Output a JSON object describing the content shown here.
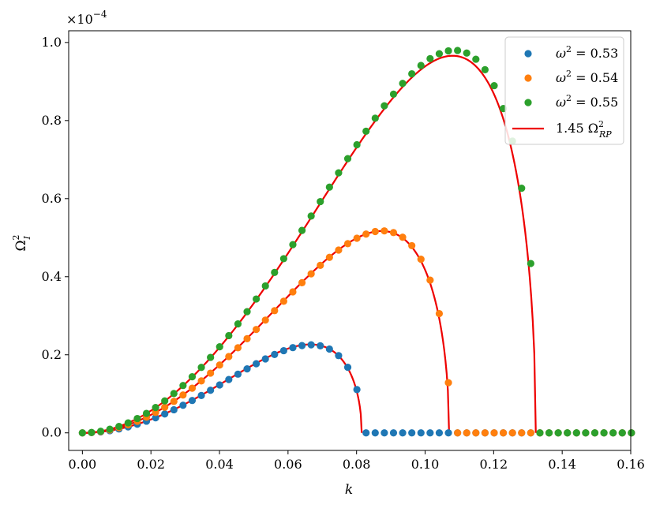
{
  "chart_data": {
    "type": "scatter",
    "title": "",
    "xlabel": "k",
    "ylabel": "Ω_I^2",
    "y_multiplier": "×10^−4",
    "xlim": [
      -0.004,
      0.16
    ],
    "ylim": [
      -0.045,
      1.03
    ],
    "xticks": [
      0.0,
      0.02,
      0.04,
      0.06,
      0.08,
      0.1,
      0.12,
      0.14,
      0.16
    ],
    "xtick_labels": [
      "0.00",
      "0.02",
      "0.04",
      "0.06",
      "0.08",
      "0.10",
      "0.12",
      "0.14",
      "0.16"
    ],
    "yticks": [
      0.0,
      0.2,
      0.4,
      0.6,
      0.8,
      1.0
    ],
    "ytick_labels": [
      "0.0",
      "0.2",
      "0.4",
      "0.6",
      "0.8",
      "1.0"
    ],
    "grid": false,
    "legend_position": "top-right",
    "series": [
      {
        "name": "ω² = 0.53",
        "label_base": "ω",
        "label_sup": "2",
        "label_rest": " = 0.53",
        "kind": "scatter",
        "color": "#1f77b4",
        "kc": 0.0817,
        "peak": 0.2255
      },
      {
        "name": "ω² = 0.54",
        "label_base": "ω",
        "label_sup": "2",
        "label_rest": " = 0.54",
        "kind": "scatter",
        "color": "#ff7f0e",
        "kc": 0.1073,
        "peak": 0.5175
      },
      {
        "name": "ω² = 0.55",
        "label_base": "ω",
        "label_sup": "2",
        "label_rest": " = 0.55",
        "kind": "scatter",
        "color": "#2ca02c",
        "kc": 0.1329,
        "peak": 0.98
      }
    ],
    "fit_lines": [
      {
        "kc": 0.0815,
        "peak": 0.2265
      },
      {
        "kc": 0.107,
        "peak": 0.517
      },
      {
        "kc": 0.1323,
        "peak": 0.966
      }
    ],
    "fit_legend": {
      "label_pre": "1.45 Ω",
      "label_sup": "2",
      "label_sub": "RP",
      "color": "#ee0000"
    },
    "sample_step": 0.00267,
    "sample_max": 0.16
  }
}
